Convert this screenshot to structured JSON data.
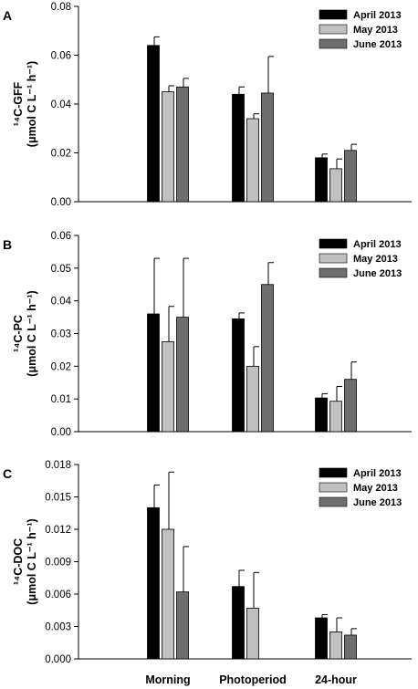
{
  "chart_data": [
    {
      "type": "bar",
      "panel": "A",
      "categories": [
        "Morning",
        "Photoperiod",
        "24-hour"
      ],
      "ylabel": "¹⁴C-GFF (μmol C L⁻¹ h⁻¹)",
      "ylabel_lines": [
        "¹⁴C-GFF",
        "(μmol C L⁻¹ h⁻¹)"
      ],
      "ylim": [
        0,
        0.08
      ],
      "yticks": [
        "0.00",
        "0.02",
        "0.04",
        "0.06",
        "0.08"
      ],
      "legend_position": "top-right",
      "series": [
        {
          "name": "April 2013",
          "color": "#000000",
          "values": [
            0.064,
            0.044,
            0.018
          ],
          "errors": [
            0.0035,
            0.003,
            0.0015
          ]
        },
        {
          "name": "May 2013",
          "color": "#c0c0c0",
          "values": [
            0.045,
            0.034,
            0.0135
          ],
          "errors": [
            0.0025,
            0.002,
            0.004
          ]
        },
        {
          "name": "June 2013",
          "color": "#6e6e6e",
          "values": [
            0.047,
            0.0445,
            0.021
          ],
          "errors": [
            0.0035,
            0.015,
            0.0025
          ]
        }
      ]
    },
    {
      "type": "bar",
      "panel": "B",
      "categories": [
        "Morning",
        "Photoperiod",
        "24-hour"
      ],
      "ylabel": "¹⁴C-PC (μmol C L⁻¹ h⁻¹)",
      "ylabel_lines": [
        "¹⁴C-PC",
        "(μmol C L⁻¹ h⁻¹)"
      ],
      "ylim": [
        0,
        0.06
      ],
      "yticks": [
        "0.00",
        "0.01",
        "0.02",
        "0.03",
        "0.04",
        "0.05",
        "0.06"
      ],
      "legend_position": "top-right",
      "series": [
        {
          "name": "April 2013",
          "color": "#000000",
          "values": [
            0.036,
            0.0345,
            0.0103
          ],
          "errors": [
            0.017,
            0.0018,
            0.0013
          ]
        },
        {
          "name": "May 2013",
          "color": "#c0c0c0",
          "values": [
            0.0275,
            0.02,
            0.0093
          ],
          "errors": [
            0.0108,
            0.006,
            0.0045
          ]
        },
        {
          "name": "June 2013",
          "color": "#6e6e6e",
          "values": [
            0.035,
            0.045,
            0.016
          ],
          "errors": [
            0.018,
            0.0067,
            0.0053
          ]
        }
      ]
    },
    {
      "type": "bar",
      "panel": "C",
      "categories": [
        "Morning",
        "Photoperiod",
        "24-hour"
      ],
      "ylabel": "¹⁴C-DOC (μmol C L⁻¹ h⁻¹)",
      "ylabel_lines": [
        "¹⁴C-DOC",
        "(μmol C L⁻¹ h⁻¹)"
      ],
      "ylim": [
        0,
        0.018
      ],
      "yticks": [
        "0.000",
        "0.003",
        "0.006",
        "0.009",
        "0.012",
        "0.015",
        "0.018"
      ],
      "legend_position": "top-right",
      "series": [
        {
          "name": "April 2013",
          "color": "#000000",
          "values": [
            0.014,
            0.0067,
            0.0038
          ],
          "errors": [
            0.0021,
            0.0015,
            0.0003
          ]
        },
        {
          "name": "May 2013",
          "color": "#c0c0c0",
          "values": [
            0.012,
            0.0047,
            0.0025
          ],
          "errors": [
            0.0053,
            0.0033,
            0.0013
          ]
        },
        {
          "name": "June 2013",
          "color": "#6e6e6e",
          "values": [
            0.0062,
            0.0,
            0.0022
          ],
          "errors": [
            0.0042,
            0.0,
            0.0006
          ]
        }
      ]
    }
  ]
}
